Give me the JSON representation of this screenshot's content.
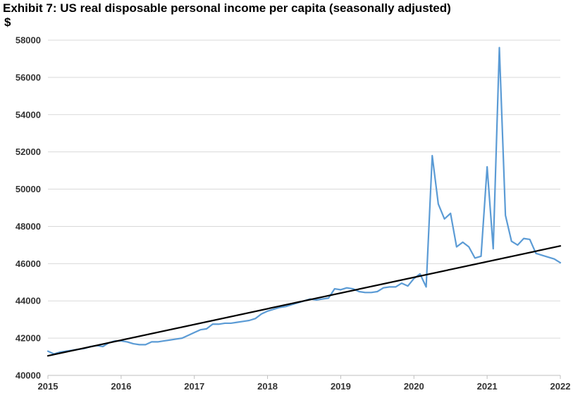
{
  "chart_data": {
    "type": "line",
    "title": "Exhibit 7: US real disposable personal income per capita (seasonally adjusted)",
    "ylabel": "$",
    "xlabel": "",
    "xlim": [
      2015,
      2022
    ],
    "ylim": [
      40000,
      58000
    ],
    "yticks": [
      "40000",
      "42000",
      "44000",
      "46000",
      "48000",
      "50000",
      "52000",
      "54000",
      "56000",
      "58000"
    ],
    "xticks": [
      "2015",
      "2016",
      "2017",
      "2018",
      "2019",
      "2020",
      "2021",
      "2022"
    ],
    "grid": true,
    "legend": "none",
    "series": [
      {
        "color": "#5b9bd5",
        "x": [
          2015.0,
          2015.083,
          2015.167,
          2015.25,
          2015.333,
          2015.417,
          2015.5,
          2015.583,
          2015.667,
          2015.75,
          2015.833,
          2015.917,
          2016.0,
          2016.083,
          2016.167,
          2016.25,
          2016.333,
          2016.417,
          2016.5,
          2016.583,
          2016.667,
          2016.75,
          2016.833,
          2016.917,
          2017.0,
          2017.083,
          2017.167,
          2017.25,
          2017.333,
          2017.417,
          2017.5,
          2017.583,
          2017.667,
          2017.75,
          2017.833,
          2017.917,
          2018.0,
          2018.083,
          2018.167,
          2018.25,
          2018.333,
          2018.417,
          2018.5,
          2018.583,
          2018.667,
          2018.75,
          2018.833,
          2018.917,
          2019.0,
          2019.083,
          2019.167,
          2019.25,
          2019.333,
          2019.417,
          2019.5,
          2019.583,
          2019.667,
          2019.75,
          2019.833,
          2019.917,
          2020.0,
          2020.083,
          2020.167,
          2020.25,
          2020.333,
          2020.417,
          2020.5,
          2020.583,
          2020.667,
          2020.75,
          2020.833,
          2020.917,
          2021.0,
          2021.083,
          2021.167,
          2021.25,
          2021.333,
          2021.417,
          2021.5,
          2021.583,
          2021.667,
          2021.75,
          2021.833,
          2021.917,
          2022.0
        ],
        "values": [
          41300,
          41150,
          41250,
          41300,
          41350,
          41400,
          41450,
          41550,
          41600,
          41550,
          41750,
          41850,
          41850,
          41800,
          41700,
          41650,
          41650,
          41800,
          41800,
          41850,
          41900,
          41950,
          42000,
          42150,
          42300,
          42450,
          42500,
          42750,
          42750,
          42800,
          42800,
          42850,
          42900,
          42950,
          43050,
          43300,
          43450,
          43550,
          43650,
          43700,
          43800,
          43900,
          44000,
          44100,
          44050,
          44100,
          44150,
          44650,
          44600,
          44700,
          44650,
          44500,
          44450,
          44450,
          44500,
          44700,
          44750,
          44750,
          44950,
          44800,
          45200,
          45450,
          44750,
          51800,
          49200,
          48400,
          48700,
          46900,
          47150,
          46900,
          46300,
          46400,
          51200,
          46800,
          57600,
          48600,
          47200,
          47000,
          47350,
          47300,
          46550,
          46450,
          46350,
          46250,
          46050
        ]
      },
      {
        "color": "#000000",
        "x": [
          2015.0,
          2022.0
        ],
        "values": [
          41050,
          46950
        ]
      }
    ]
  }
}
